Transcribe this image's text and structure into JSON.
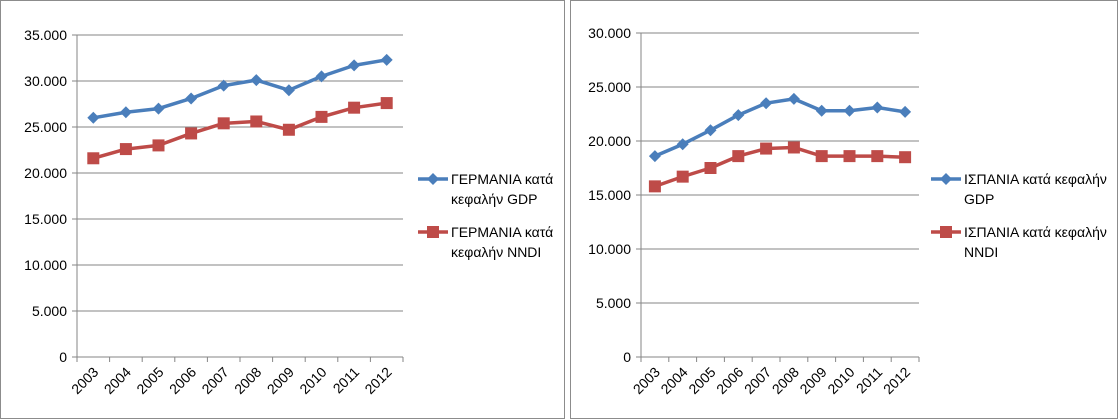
{
  "chart_data": [
    {
      "type": "line",
      "title": "",
      "xlabel": "",
      "ylabel": "",
      "categories": [
        "2003",
        "2004",
        "2005",
        "2006",
        "2007",
        "2008",
        "2009",
        "2010",
        "2011",
        "2012"
      ],
      "y_ticks": [
        "0",
        "5.000",
        "10.000",
        "15.000",
        "20.000",
        "25.000",
        "30.000",
        "35.000"
      ],
      "ylim": [
        0,
        35000
      ],
      "grid": true,
      "legend_position": "right",
      "series": [
        {
          "name": "ΓΕΡΜΑΝΙΑ κατά κεφαλήν GDP",
          "legend_lines": [
            "ΓΕΡΜΑΝΙΑ κατά",
            "κεφαλήν GDP"
          ],
          "color": "#4a7ebb",
          "marker": "diamond",
          "values": [
            26000,
            26600,
            27000,
            28100,
            29500,
            30100,
            29000,
            30500,
            31700,
            32300
          ]
        },
        {
          "name": "ΓΕΡΜΑΝΙΑ κατά κεφαλήν NNDI",
          "legend_lines": [
            "ΓΕΡΜΑΝΙΑ κατά",
            "κεφαλήν NNDI"
          ],
          "color": "#be4b48",
          "marker": "square",
          "values": [
            21600,
            22600,
            23000,
            24300,
            25400,
            25600,
            24700,
            26100,
            27100,
            27600
          ]
        }
      ]
    },
    {
      "type": "line",
      "title": "",
      "xlabel": "",
      "ylabel": "",
      "categories": [
        "2003",
        "2004",
        "2005",
        "2006",
        "2007",
        "2008",
        "2009",
        "2010",
        "2011",
        "2012"
      ],
      "y_ticks": [
        "0",
        "5.000",
        "10.000",
        "15.000",
        "20.000",
        "25.000",
        "30.000"
      ],
      "ylim": [
        0,
        30000
      ],
      "grid": true,
      "legend_position": "right",
      "series": [
        {
          "name": "ΙΣΠΑΝΙΑ κατά κεφαλήν GDP",
          "legend_lines": [
            "ΙΣΠΑΝΙΑ κατά κεφαλήν",
            "GDP"
          ],
          "color": "#4a7ebb",
          "marker": "diamond",
          "values": [
            18600,
            19700,
            21000,
            22400,
            23500,
            23900,
            22800,
            22800,
            23100,
            22700
          ]
        },
        {
          "name": "ΙΣΠΑΝΙΑ κατά κεφαλήν NNDI",
          "legend_lines": [
            "ΙΣΠΑΝΙΑ κατά κεφαλήν",
            "NNDI"
          ],
          "color": "#be4b48",
          "marker": "square",
          "values": [
            15800,
            16700,
            17500,
            18600,
            19300,
            19400,
            18600,
            18600,
            18600,
            18500
          ]
        }
      ]
    }
  ]
}
